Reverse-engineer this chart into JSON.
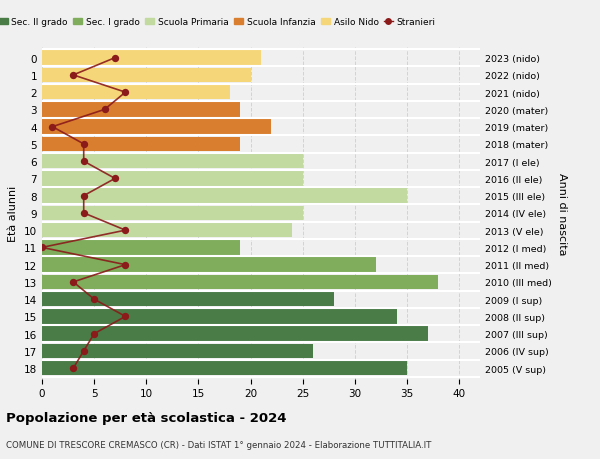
{
  "ages": [
    18,
    17,
    16,
    15,
    14,
    13,
    12,
    11,
    10,
    9,
    8,
    7,
    6,
    5,
    4,
    3,
    2,
    1,
    0
  ],
  "anni_nascita": [
    "2005 (V sup)",
    "2006 (IV sup)",
    "2007 (III sup)",
    "2008 (II sup)",
    "2009 (I sup)",
    "2010 (III med)",
    "2011 (II med)",
    "2012 (I med)",
    "2013 (V ele)",
    "2014 (IV ele)",
    "2015 (III ele)",
    "2016 (II ele)",
    "2017 (I ele)",
    "2018 (mater)",
    "2019 (mater)",
    "2020 (mater)",
    "2021 (nido)",
    "2022 (nido)",
    "2023 (nido)"
  ],
  "bar_values": [
    35,
    26,
    37,
    34,
    28,
    38,
    32,
    19,
    24,
    25,
    35,
    25,
    25,
    19,
    22,
    19,
    18,
    20,
    21
  ],
  "bar_colors": [
    "#4a7c47",
    "#4a7c47",
    "#4a7c47",
    "#4a7c47",
    "#4a7c47",
    "#7fad5c",
    "#7fad5c",
    "#7fad5c",
    "#c2d9a0",
    "#c2d9a0",
    "#c2d9a0",
    "#c2d9a0",
    "#c2d9a0",
    "#d97e2e",
    "#d97e2e",
    "#d97e2e",
    "#f5d77a",
    "#f5d77a",
    "#f5d77a"
  ],
  "stranieri_values": [
    3,
    4,
    5,
    8,
    5,
    3,
    8,
    0,
    8,
    4,
    4,
    7,
    4,
    4,
    1,
    6,
    8,
    3,
    7
  ],
  "legend_labels": [
    "Sec. II grado",
    "Sec. I grado",
    "Scuola Primaria",
    "Scuola Infanzia",
    "Asilo Nido",
    "Stranieri"
  ],
  "legend_colors": [
    "#4a7c47",
    "#7fad5c",
    "#c2d9a0",
    "#d97e2e",
    "#f5d77a",
    "#8b1a1a"
  ],
  "title": "Popolazione per età scolastica - 2024",
  "subtitle": "COMUNE DI TRESCORE CREMASCO (CR) - Dati ISTAT 1° gennaio 2024 - Elaborazione TUTTITALIA.IT",
  "ylabel_left": "Età alunni",
  "ylabel_right": "Anni di nascita",
  "xlim": [
    0,
    42
  ],
  "bg_color": "#f0f0f0",
  "grid_color": "#d0d0d0",
  "stranieri_line_color": "#8b1a1a",
  "stranieri_dot_color": "#8b1a1a"
}
